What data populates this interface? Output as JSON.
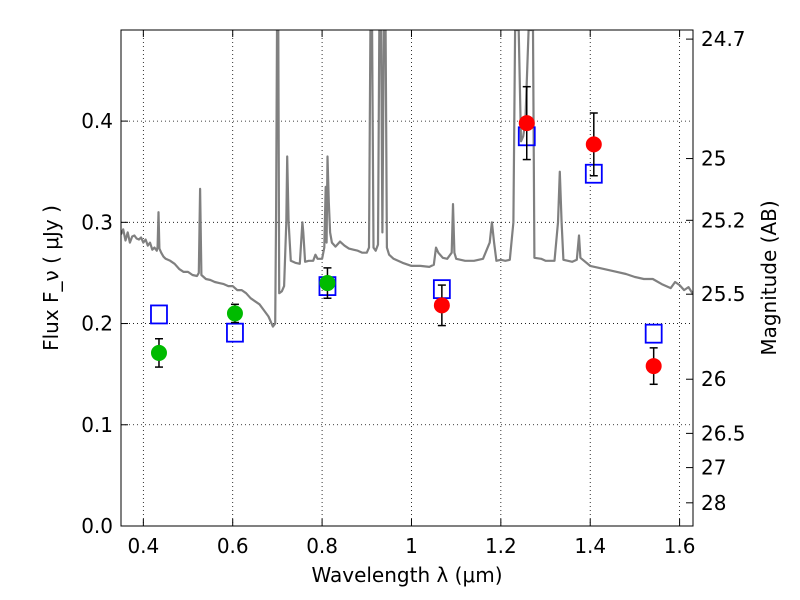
{
  "chart_data": {
    "type": "scatter",
    "xlabel": "Wavelength  λ (μm)",
    "ylabel": "Flux  F_ν  ( μJy )",
    "ylabel_right": "Magnitude (AB)",
    "xlim": [
      0.35,
      1.63
    ],
    "ylim": [
      0.0,
      0.49
    ],
    "grid": true,
    "x_ticks": [
      0.4,
      0.6,
      0.8,
      1.0,
      1.2,
      1.4,
      1.6
    ],
    "x_tick_labels": [
      "0.4",
      "0.6",
      "0.8",
      "1",
      "1.2",
      "1.4",
      "1.6"
    ],
    "y_ticks": [
      0.0,
      0.1,
      0.2,
      0.3,
      0.4
    ],
    "y_tick_labels": [
      "0.0",
      "0.1",
      "0.2",
      "0.3",
      "0.4"
    ],
    "right_ticks": [
      {
        "label": "24.7",
        "flux": 0.481
      },
      {
        "label": "25",
        "flux": 0.363
      },
      {
        "label": "25.2",
        "flux": 0.302
      },
      {
        "label": "25.5",
        "flux": 0.229
      },
      {
        "label": "26",
        "flux": 0.145
      },
      {
        "label": "26.5",
        "flux": 0.0915
      },
      {
        "label": "27",
        "flux": 0.0577
      },
      {
        "label": "28",
        "flux": 0.0229
      }
    ],
    "series": [
      {
        "kind": "model_spectrum",
        "color": "#808080",
        "points": [
          [
            0.35,
            0.288
          ],
          [
            0.355,
            0.293
          ],
          [
            0.36,
            0.282
          ],
          [
            0.365,
            0.29
          ],
          [
            0.37,
            0.28
          ],
          [
            0.375,
            0.286
          ],
          [
            0.38,
            0.287
          ],
          [
            0.385,
            0.284
          ],
          [
            0.39,
            0.283
          ],
          [
            0.395,
            0.285
          ],
          [
            0.4,
            0.28
          ],
          [
            0.405,
            0.283
          ],
          [
            0.41,
            0.277
          ],
          [
            0.415,
            0.28
          ],
          [
            0.42,
            0.273
          ],
          [
            0.425,
            0.275
          ],
          [
            0.43,
            0.272
          ],
          [
            0.432,
            0.276
          ],
          [
            0.434,
            0.31
          ],
          [
            0.436,
            0.274
          ],
          [
            0.44,
            0.27
          ],
          [
            0.445,
            0.266
          ],
          [
            0.45,
            0.264
          ],
          [
            0.46,
            0.262
          ],
          [
            0.47,
            0.259
          ],
          [
            0.48,
            0.254
          ],
          [
            0.49,
            0.251
          ],
          [
            0.5,
            0.251
          ],
          [
            0.51,
            0.248
          ],
          [
            0.52,
            0.247
          ],
          [
            0.524,
            0.25
          ],
          [
            0.527,
            0.333
          ],
          [
            0.53,
            0.248
          ],
          [
            0.54,
            0.244
          ],
          [
            0.55,
            0.243
          ],
          [
            0.56,
            0.241
          ],
          [
            0.57,
            0.24
          ],
          [
            0.58,
            0.239
          ],
          [
            0.59,
            0.237
          ],
          [
            0.6,
            0.237
          ],
          [
            0.61,
            0.233
          ],
          [
            0.62,
            0.233
          ],
          [
            0.63,
            0.23
          ],
          [
            0.64,
            0.225
          ],
          [
            0.65,
            0.222
          ],
          [
            0.66,
            0.219
          ],
          [
            0.67,
            0.213
          ],
          [
            0.68,
            0.207
          ],
          [
            0.69,
            0.197
          ],
          [
            0.695,
            0.2
          ],
          [
            0.697,
            0.31
          ],
          [
            0.699,
            0.49
          ],
          [
            0.702,
            0.49
          ],
          [
            0.704,
            0.23
          ],
          [
            0.71,
            0.232
          ],
          [
            0.715,
            0.237
          ],
          [
            0.72,
            0.3
          ],
          [
            0.722,
            0.365
          ],
          [
            0.725,
            0.3
          ],
          [
            0.73,
            0.262
          ],
          [
            0.74,
            0.26
          ],
          [
            0.75,
            0.259
          ],
          [
            0.756,
            0.3
          ],
          [
            0.758,
            0.29
          ],
          [
            0.762,
            0.261
          ],
          [
            0.77,
            0.262
          ],
          [
            0.78,
            0.262
          ],
          [
            0.785,
            0.268
          ],
          [
            0.79,
            0.264
          ],
          [
            0.8,
            0.264
          ],
          [
            0.805,
            0.275
          ],
          [
            0.808,
            0.335
          ],
          [
            0.81,
            0.28
          ],
          [
            0.812,
            0.365
          ],
          [
            0.815,
            0.32
          ],
          [
            0.818,
            0.29
          ],
          [
            0.822,
            0.28
          ],
          [
            0.83,
            0.276
          ],
          [
            0.84,
            0.281
          ],
          [
            0.85,
            0.277
          ],
          [
            0.86,
            0.274
          ],
          [
            0.87,
            0.273
          ],
          [
            0.88,
            0.272
          ],
          [
            0.89,
            0.27
          ],
          [
            0.9,
            0.27
          ],
          [
            0.905,
            0.275
          ],
          [
            0.908,
            0.49
          ],
          [
            0.912,
            0.49
          ],
          [
            0.915,
            0.275
          ],
          [
            0.92,
            0.272
          ],
          [
            0.925,
            0.278
          ],
          [
            0.928,
            0.49
          ],
          [
            0.932,
            0.49
          ],
          [
            0.935,
            0.29
          ],
          [
            0.938,
            0.49
          ],
          [
            0.942,
            0.49
          ],
          [
            0.945,
            0.275
          ],
          [
            0.95,
            0.268
          ],
          [
            0.96,
            0.264
          ],
          [
            0.98,
            0.26
          ],
          [
            1.0,
            0.257
          ],
          [
            1.02,
            0.257
          ],
          [
            1.04,
            0.256
          ],
          [
            1.05,
            0.258
          ],
          [
            1.055,
            0.275
          ],
          [
            1.06,
            0.27
          ],
          [
            1.07,
            0.265
          ],
          [
            1.08,
            0.264
          ],
          [
            1.09,
            0.27
          ],
          [
            1.093,
            0.318
          ],
          [
            1.096,
            0.27
          ],
          [
            1.1,
            0.264
          ],
          [
            1.12,
            0.262
          ],
          [
            1.14,
            0.262
          ],
          [
            1.16,
            0.264
          ],
          [
            1.175,
            0.28
          ],
          [
            1.18,
            0.3
          ],
          [
            1.185,
            0.28
          ],
          [
            1.19,
            0.262
          ],
          [
            1.2,
            0.263
          ],
          [
            1.21,
            0.262
          ],
          [
            1.22,
            0.263
          ],
          [
            1.228,
            0.3
          ],
          [
            1.232,
            0.49
          ],
          [
            1.24,
            0.49
          ],
          [
            1.245,
            0.38
          ],
          [
            1.25,
            0.385
          ],
          [
            1.255,
            0.4
          ],
          [
            1.262,
            0.49
          ],
          [
            1.272,
            0.49
          ],
          [
            1.275,
            0.265
          ],
          [
            1.29,
            0.264
          ],
          [
            1.3,
            0.262
          ],
          [
            1.32,
            0.262
          ],
          [
            1.328,
            0.3
          ],
          [
            1.332,
            0.35
          ],
          [
            1.336,
            0.3
          ],
          [
            1.34,
            0.263
          ],
          [
            1.35,
            0.262
          ],
          [
            1.36,
            0.261
          ],
          [
            1.37,
            0.263
          ],
          [
            1.375,
            0.287
          ],
          [
            1.378,
            0.265
          ],
          [
            1.4,
            0.257
          ],
          [
            1.42,
            0.255
          ],
          [
            1.44,
            0.253
          ],
          [
            1.46,
            0.251
          ],
          [
            1.48,
            0.249
          ],
          [
            1.5,
            0.246
          ],
          [
            1.52,
            0.244
          ],
          [
            1.54,
            0.244
          ],
          [
            1.56,
            0.239
          ],
          [
            1.58,
            0.235
          ],
          [
            1.59,
            0.241
          ],
          [
            1.6,
            0.238
          ],
          [
            1.61,
            0.233
          ],
          [
            1.62,
            0.236
          ],
          [
            1.63,
            0.229
          ]
        ]
      },
      {
        "kind": "model_photometry",
        "marker": "open-square",
        "color": "#0000ff",
        "points": [
          [
            0.435,
            0.209
          ],
          [
            0.605,
            0.191
          ],
          [
            0.812,
            0.237
          ],
          [
            1.068,
            0.234
          ],
          [
            1.258,
            0.385
          ],
          [
            1.408,
            0.348
          ],
          [
            1.542,
            0.19
          ]
        ]
      },
      {
        "kind": "observed_photometry",
        "marker": "filled-circle",
        "color": "#00bb00",
        "points": [
          {
            "x": 0.435,
            "y": 0.171,
            "err": 0.014
          },
          {
            "x": 0.605,
            "y": 0.21,
            "err": 0.009
          },
          {
            "x": 0.812,
            "y": 0.24,
            "err": 0.015
          }
        ]
      },
      {
        "kind": "observed_photometry",
        "marker": "filled-circle",
        "color": "#ff0000",
        "points": [
          {
            "x": 1.068,
            "y": 0.218,
            "err": 0.02
          },
          {
            "x": 1.258,
            "y": 0.398,
            "err": 0.036
          },
          {
            "x": 1.408,
            "y": 0.377,
            "err": 0.031
          },
          {
            "x": 1.542,
            "y": 0.158,
            "err": 0.018
          }
        ]
      }
    ]
  }
}
